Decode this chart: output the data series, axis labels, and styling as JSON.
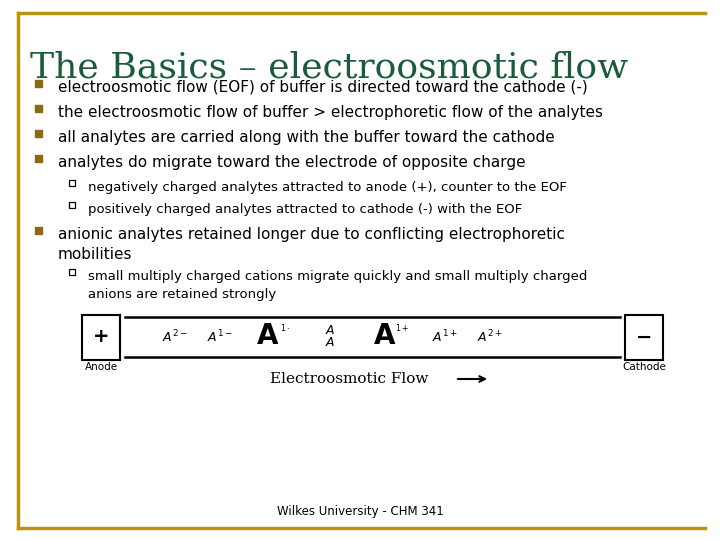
{
  "title": "The Basics – electroosmotic flow",
  "title_color": "#1A5C3A",
  "title_fontsize": 26,
  "bg_color": "#FFFFFF",
  "border_color": "#B8960C",
  "footer": "Wilkes University - CHM 341",
  "bullet_color": "#8B6914",
  "text_color": "#000000",
  "bullet_items": [
    "electroosmotic flow (EOF) of buffer is directed toward the cathode (-)",
    "the electroosmotic flow of buffer > electrophoretic flow of the analytes",
    "all analytes are carried along with the buffer toward the cathode",
    "analytes do migrate toward the electrode of opposite charge"
  ],
  "sub_bullets": [
    "negatively charged analytes attracted to anode (+), counter to the EOF",
    "positively charged analytes attracted to cathode (-) with the EOF"
  ],
  "bullet5_line1": "anionic analytes retained longer due to conflicting electrophoretic",
  "bullet5_line2": "mobilities",
  "sub_bullet5_line1": "small multiply charged cations migrate quickly and small multiply charged",
  "sub_bullet5_line2": "anions are retained strongly",
  "anode_label": "Anode",
  "cathode_label": "Cathode",
  "eof_label": "Electroosmotic Flow"
}
